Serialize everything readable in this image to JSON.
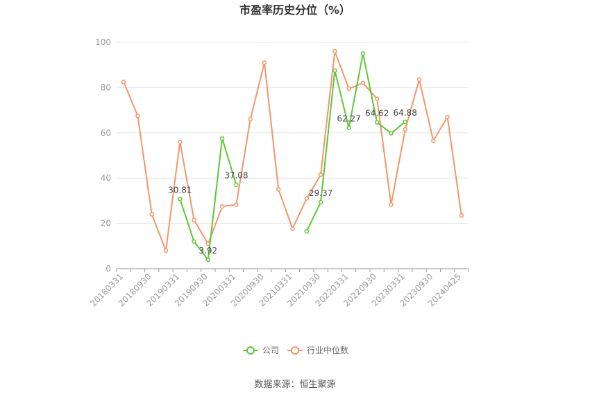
{
  "chart_data": {
    "type": "line",
    "title": "市盈率历史分位（%）",
    "source": "数据来源：恒生聚源",
    "ylim": [
      0,
      100
    ],
    "yticks": [
      0,
      20,
      40,
      60,
      80,
      100
    ],
    "grid": true,
    "legend_position": "bottom",
    "x": [
      "20180331",
      "20180630",
      "20180930",
      "20181231",
      "20190331",
      "20190630",
      "20190930",
      "20191231",
      "20200331",
      "20200630",
      "20200930",
      "20201231",
      "20210331",
      "20210630",
      "20210930",
      "20211231",
      "20220331",
      "20220630",
      "20220930",
      "20221231",
      "20230331",
      "20230630",
      "20230930",
      "20231231",
      "20240425"
    ],
    "xtick_labels": [
      "20180331",
      "20180930",
      "20190331",
      "20190930",
      "20200331",
      "20200930",
      "20210331",
      "20210930",
      "20220331",
      "20220930",
      "20230331",
      "20230930",
      "20240425"
    ],
    "xtick_indices": [
      0,
      2,
      4,
      6,
      8,
      10,
      12,
      14,
      16,
      18,
      20,
      22,
      24
    ],
    "series": [
      {
        "name": "公司",
        "color": "#5ec734",
        "values": [
          null,
          null,
          null,
          null,
          30.81,
          12,
          3.92,
          57.5,
          37.08,
          null,
          null,
          null,
          null,
          16.5,
          29.37,
          87.5,
          62.27,
          95,
          64.62,
          59.8,
          64.88,
          null,
          null,
          null,
          null
        ],
        "labels": [
          {
            "index": 4,
            "text": "30.81"
          },
          {
            "index": 6,
            "text": "3.92"
          },
          {
            "index": 8,
            "text": "37.08"
          },
          {
            "index": 14,
            "text": "29.37"
          },
          {
            "index": 16,
            "text": "62.27"
          },
          {
            "index": 18,
            "text": "64.62"
          },
          {
            "index": 20,
            "text": "64.88"
          }
        ]
      },
      {
        "name": "行业中位数",
        "color": "#f4956a",
        "values": [
          82.5,
          67.5,
          24,
          8,
          56,
          21.5,
          11,
          27.5,
          28.3,
          66,
          91,
          35,
          17.7,
          31,
          41.5,
          96,
          79.5,
          82,
          75,
          28.3,
          61.5,
          83.5,
          56.5,
          67,
          23.5
        ]
      }
    ]
  }
}
